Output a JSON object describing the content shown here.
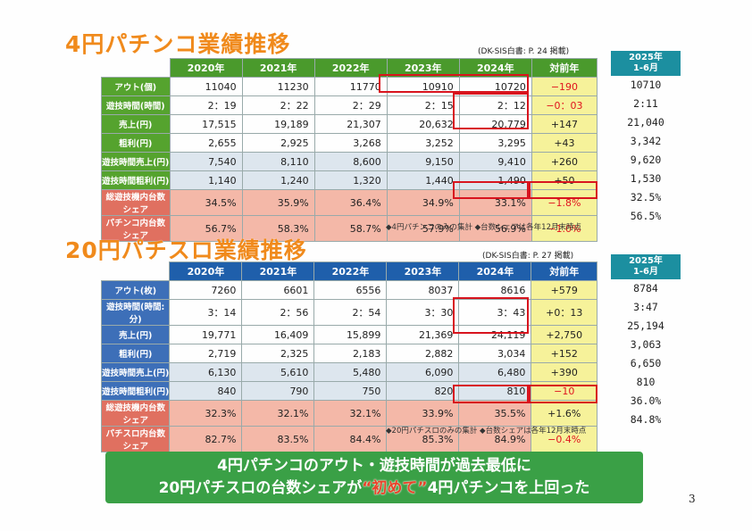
{
  "top": {
    "title": "4円パチンコ業績推移",
    "source": "(DK-SIS白書: P. 24  掲載)",
    "columns": [
      "",
      "2020年",
      "2021年",
      "2022年",
      "2023年",
      "2024年",
      "対前年"
    ],
    "rows": [
      {
        "label": "アウト(個)",
        "values": [
          "11040",
          "11230",
          "11770",
          "10910",
          "10720"
        ],
        "diff": "−190",
        "diff_red": true,
        "side": "10710"
      },
      {
        "label": "遊技時間(時間)",
        "values": [
          "2：19",
          "2：22",
          "2：29",
          "2：15",
          "2：12"
        ],
        "diff": "−0：03",
        "diff_red": true,
        "side": "2:11"
      },
      {
        "label": "売上(円)",
        "values": [
          "17,515",
          "19,189",
          "21,307",
          "20,632",
          "20,779"
        ],
        "diff": "+147",
        "diff_red": false,
        "side": "21,040"
      },
      {
        "label": "粗利(円)",
        "values": [
          "2,655",
          "2,925",
          "3,268",
          "3,252",
          "3,295"
        ],
        "diff": "+43",
        "diff_red": false,
        "side": "3,342"
      },
      {
        "label": "遊技時間売上(円)",
        "values": [
          "7,540",
          "8,110",
          "8,600",
          "9,150",
          "9,410"
        ],
        "diff": "+260",
        "diff_red": false,
        "side": "9,620"
      },
      {
        "label": "遊技時間粗利(円)",
        "values": [
          "1,140",
          "1,240",
          "1,320",
          "1,440",
          "1,490"
        ],
        "diff": "+50",
        "diff_red": false,
        "side": "1,530"
      },
      {
        "label": "総遊技機内台数シェア",
        "values": [
          "34.5%",
          "35.9%",
          "36.4%",
          "34.9%",
          "33.1%"
        ],
        "diff": "−1.8%",
        "diff_red": true,
        "side": "32.5%"
      },
      {
        "label": "パチンコ内台数シェア",
        "values": [
          "56.7%",
          "58.3%",
          "58.7%",
          "57.9%",
          "56.9%"
        ],
        "diff": "−1.0%",
        "diff_red": true,
        "side": "56.5%"
      }
    ],
    "side_header": "2025年\n1-6月",
    "note": "◆4円パチンコのみの集計   ◆台数シェアは各年12月末時点"
  },
  "bottom": {
    "title": "20円パチスロ業績推移",
    "source": "(DK-SIS白書: P. 27  掲載)",
    "columns": [
      "",
      "2020年",
      "2021年",
      "2022年",
      "2023年",
      "2024年",
      "対前年"
    ],
    "rows": [
      {
        "label": "アウト(枚)",
        "values": [
          "7260",
          "6601",
          "6556",
          "8037",
          "8616"
        ],
        "diff": "+579",
        "diff_red": false,
        "side": "8784"
      },
      {
        "label": "遊技時間(時間:分)",
        "values": [
          "3：14",
          "2：56",
          "2：54",
          "3：30",
          "3：43"
        ],
        "diff": "+0：13",
        "diff_red": false,
        "side": "3:47"
      },
      {
        "label": "売上(円)",
        "values": [
          "19,771",
          "16,409",
          "15,899",
          "21,369",
          "24,119"
        ],
        "diff": "+2,750",
        "diff_red": false,
        "side": "25,194"
      },
      {
        "label": "粗利(円)",
        "values": [
          "2,719",
          "2,325",
          "2,183",
          "2,882",
          "3,034"
        ],
        "diff": "+152",
        "diff_red": false,
        "side": "3,063"
      },
      {
        "label": "遊技時間売上(円)",
        "values": [
          "6,130",
          "5,610",
          "5,480",
          "6,090",
          "6,480"
        ],
        "diff": "+390",
        "diff_red": false,
        "side": "6,650"
      },
      {
        "label": "遊技時間粗利(円)",
        "values": [
          "840",
          "790",
          "750",
          "820",
          "810"
        ],
        "diff": "−10",
        "diff_red": true,
        "side": "810"
      },
      {
        "label": "総遊技機内台数シェア",
        "values": [
          "32.3%",
          "32.1%",
          "32.1%",
          "33.9%",
          "35.5%"
        ],
        "diff": "+1.6%",
        "diff_red": false,
        "side": "36.0%"
      },
      {
        "label": "パチスロ内台数シェア",
        "values": [
          "82.7%",
          "83.5%",
          "84.4%",
          "85.3%",
          "84.9%"
        ],
        "diff": "−0.4%",
        "diff_red": true,
        "side": "84.8%"
      }
    ],
    "side_header": "2025年\n1-6月",
    "note": "◆20円パチスロのみの集計   ◆台数シェアは各年12月末時点"
  },
  "banner": {
    "line1": "4円パチンコのアウト・遊技時間が過去最低に",
    "line2_a": "20円パチスロの台数シェアが",
    "line2_hl": "“初めて”",
    "line2_b": "4円パチンコを上回った"
  },
  "page_number": "3",
  "colors": {
    "accent_orange": "#f08a1c",
    "top_header": "#4a9a2c",
    "bottom_header": "#1f5fab",
    "highlight": "#f6f29a",
    "negative": "#e0141e",
    "banner": "#3aa046"
  }
}
